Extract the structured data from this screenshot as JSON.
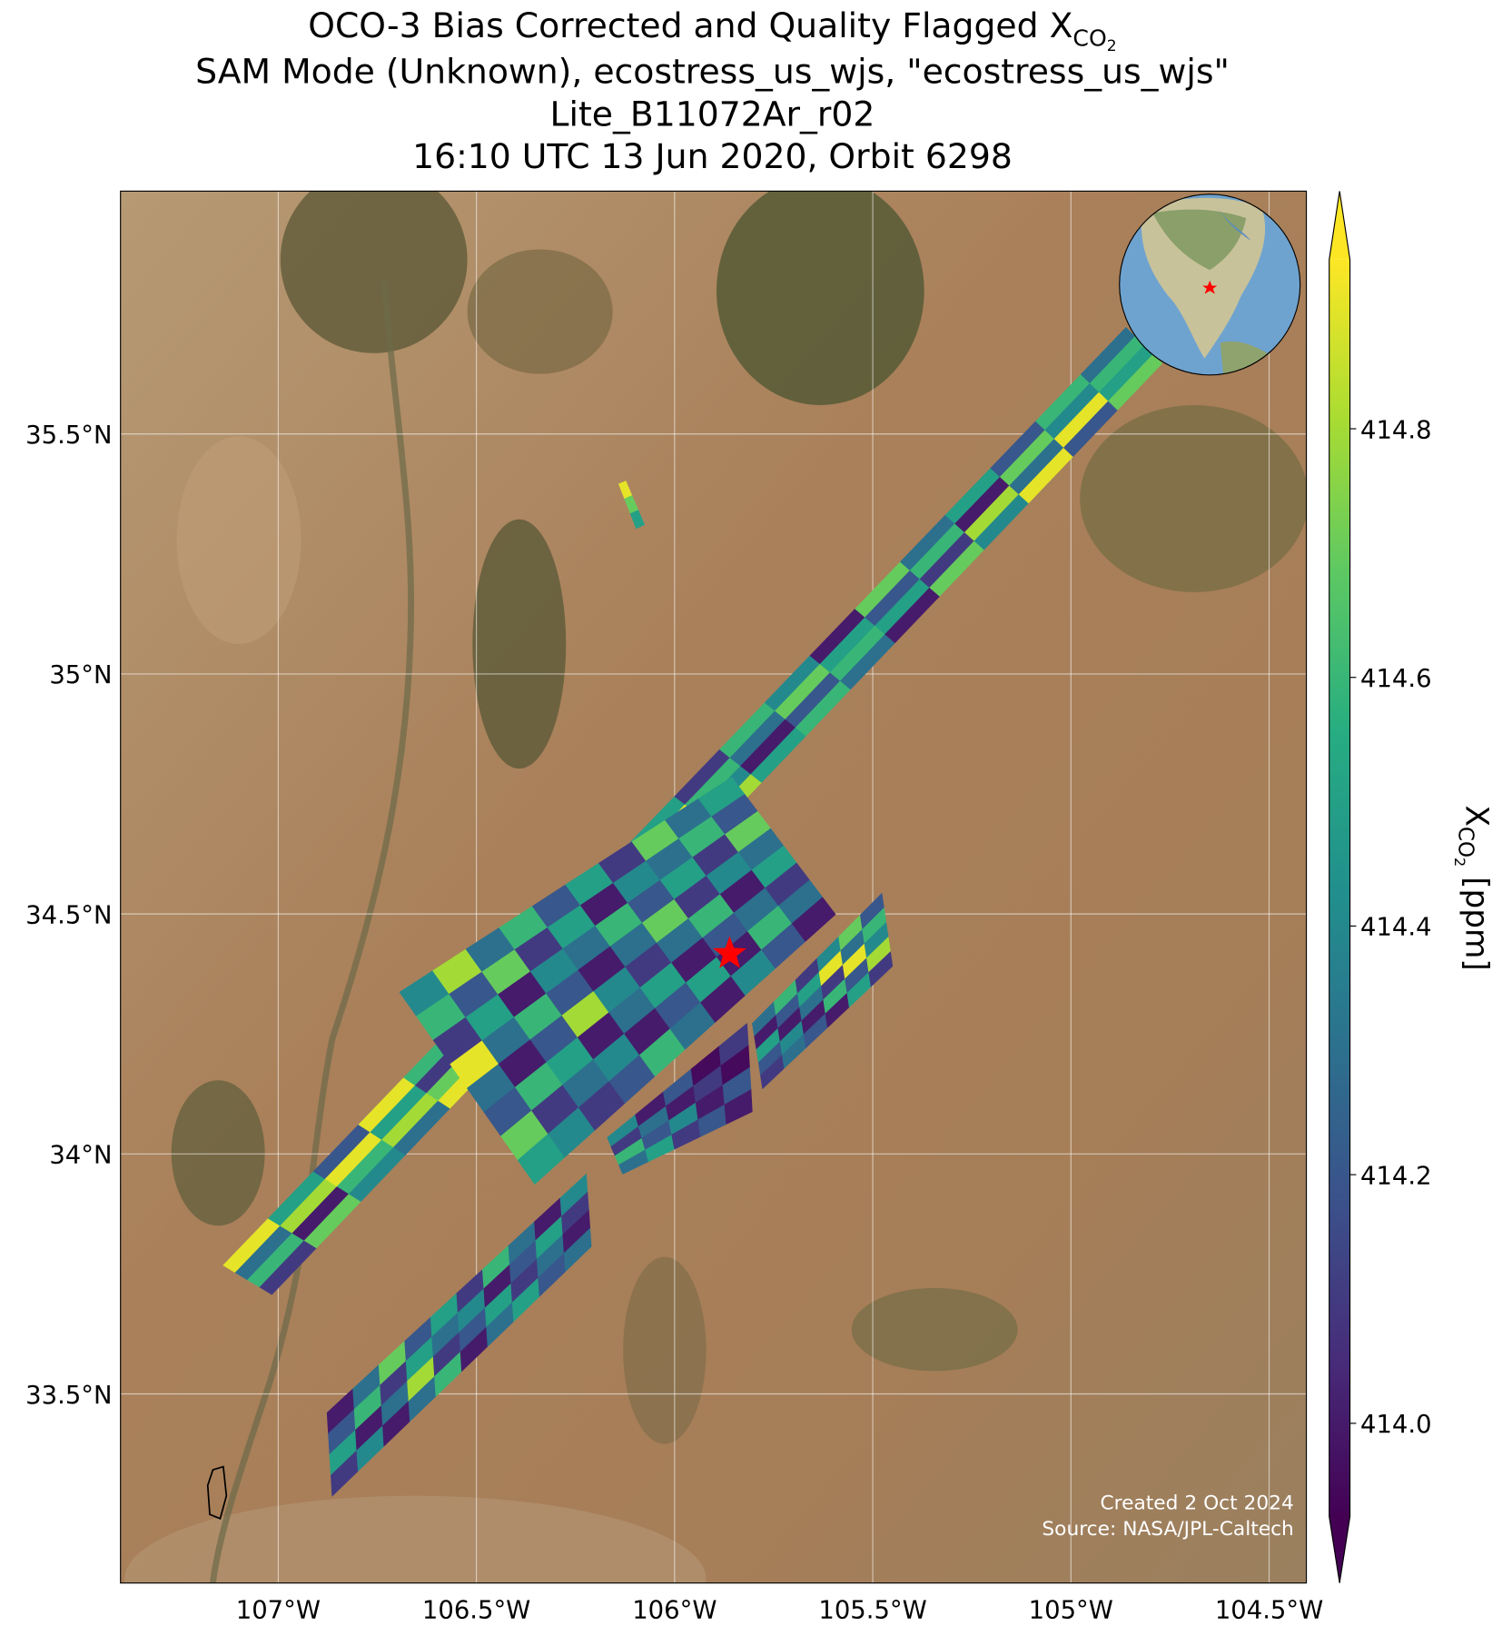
{
  "chart_data": {
    "type": "map",
    "title": {
      "text": "OCO-3 Bias Corrected and Quality Flagged X",
      "sub": "CO",
      "subsub": "2"
    },
    "subtitle_lines": [
      "SAM Mode (Unknown), ecostress_us_wjs, \"ecostress_us_wjs\"",
      "Lite_B11072Ar_r02",
      "16:10 UTC 13 Jun 2020, Orbit 6298"
    ],
    "xlim": [
      -107.398,
      -104.406
    ],
    "ylim": [
      33.106,
      36.006
    ],
    "xticks": [
      {
        "value": -107,
        "label": "107°W"
      },
      {
        "value": -106.5,
        "label": "106.5°W"
      },
      {
        "value": -106,
        "label": "106°W"
      },
      {
        "value": -105.5,
        "label": "105.5°W"
      },
      {
        "value": -105,
        "label": "105°W"
      },
      {
        "value": -104.5,
        "label": "104.5°W"
      }
    ],
    "yticks": [
      {
        "value": 33.5,
        "label": "33.5°N"
      },
      {
        "value": 34,
        "label": "34°N"
      },
      {
        "value": 34.5,
        "label": "34.5°N"
      },
      {
        "value": 35,
        "label": "35°N"
      },
      {
        "value": 35.5,
        "label": "35.5°N"
      }
    ],
    "grid": true,
    "site": {
      "lon": -105.861,
      "lat": 34.417,
      "color": "#ff0000"
    },
    "colorbar": {
      "colormap": "viridis",
      "clim": [
        413.925,
        414.936
      ],
      "ticks": [
        {
          "value": 414.0,
          "label": "414.0"
        },
        414.2,
        414.4,
        414.6,
        414.8
      ],
      "label": {
        "main": "X",
        "sub": "CO",
        "subsub": "2",
        "unit": " [ppm]"
      }
    },
    "swaths": [
      {
        "corners": [
          [
            -107.139,
            33.768
          ],
          [
            -104.861,
            35.722
          ],
          [
            -104.77,
            35.647
          ],
          [
            -107.016,
            33.707
          ]
        ],
        "values": [
          [
            414.9,
            414.3,
            414.6,
            414.1
          ],
          [
            414.5,
            414.8,
            414.0,
            414.7
          ],
          [
            414.2,
            414.9,
            414.6,
            414.4
          ],
          [
            414.9,
            414.5,
            414.8,
            414.3
          ],
          [
            414.6,
            414.1,
            414.7,
            414.9
          ],
          [
            414.8,
            414.9,
            414.4,
            414.6
          ],
          [
            414.3,
            414.7,
            414.9,
            414.5
          ],
          [
            414.9,
            414.6,
            414.2,
            414.8
          ],
          [
            414.7,
            414.4,
            414.9,
            414.6
          ],
          [
            414.5,
            414.9,
            414.7,
            414.3
          ],
          [
            414.1,
            414.6,
            414.4,
            414.8
          ],
          [
            414.6,
            414.3,
            414.0,
            414.5
          ],
          [
            414.4,
            414.7,
            414.2,
            414.6
          ],
          [
            414.0,
            414.5,
            414.6,
            414.3
          ],
          [
            414.7,
            414.2,
            414.5,
            414.0
          ],
          [
            414.3,
            414.6,
            414.1,
            414.7
          ],
          [
            414.5,
            414.0,
            414.8,
            414.4
          ],
          [
            414.2,
            414.7,
            414.3,
            414.9
          ],
          [
            414.6,
            414.4,
            414.9,
            414.2
          ],
          [
            414.3,
            414.6,
            414.5,
            414.7
          ]
        ]
      },
      {
        "corners": [
          [
            -106.694,
            34.337
          ],
          [
            -105.856,
            34.785
          ],
          [
            -105.594,
            34.499
          ],
          [
            -106.353,
            33.937
          ]
        ],
        "values": [
          [
            414.4,
            414.6,
            414.1,
            414.9,
            414.3,
            414.2,
            414.7,
            414.5
          ],
          [
            414.8,
            414.2,
            414.5,
            414.3,
            414.0,
            414.6,
            414.1,
            414.4
          ],
          [
            414.3,
            414.7,
            414.0,
            414.6,
            414.2,
            414.5,
            414.3,
            414.1
          ],
          [
            414.6,
            414.1,
            414.4,
            414.2,
            414.8,
            414.0,
            414.4,
            414.2
          ],
          [
            414.2,
            414.5,
            414.3,
            414.0,
            414.4,
            414.3,
            414.0,
            414.6
          ],
          [
            414.5,
            414.0,
            414.6,
            414.3,
            414.1,
            414.5,
            414.2,
            414.3
          ],
          [
            414.1,
            414.4,
            414.2,
            414.7,
            414.3,
            414.0,
            414.5,
            414.0
          ],
          [
            414.7,
            414.3,
            414.5,
            414.1,
            414.6,
            414.2,
            414.0,
            414.4
          ],
          [
            414.3,
            414.6,
            414.1,
            414.4,
            414.0,
            414.3,
            414.6,
            414.2
          ],
          [
            414.5,
            414.2,
            414.7,
            414.3,
            414.5,
            414.1,
            414.3,
            414.0
          ]
        ]
      },
      {
        "corners": [
          [
            -105.804,
            34.272
          ],
          [
            -105.477,
            34.543
          ],
          [
            -105.45,
            34.391
          ],
          [
            -105.778,
            34.136
          ]
        ],
        "values": [
          [
            414.3,
            414.0,
            414.5,
            414.2,
            414.1
          ],
          [
            414.6,
            414.2,
            414.0,
            414.4,
            414.3
          ],
          [
            414.1,
            414.5,
            414.3,
            414.0,
            414.2
          ],
          [
            414.4,
            414.9,
            414.1,
            414.6,
            414.0
          ],
          [
            414.7,
            414.3,
            414.9,
            414.2,
            414.5
          ],
          [
            414.2,
            414.6,
            414.4,
            414.8,
            414.1
          ]
        ]
      },
      {
        "corners": [
          [
            -106.17,
            34.034
          ],
          [
            -105.817,
            34.272
          ],
          [
            -105.804,
            34.088
          ],
          [
            -106.131,
            33.958
          ]
        ],
        "values": [
          [
            414.4,
            414.1,
            414.6,
            414.3
          ],
          [
            414.0,
            414.3,
            414.2,
            414.5
          ],
          [
            414.2,
            414.0,
            414.4,
            414.1
          ],
          [
            413.95,
            414.1,
            414.0,
            414.2
          ],
          [
            414.1,
            413.95,
            414.2,
            414.0
          ]
        ]
      },
      {
        "corners": [
          [
            -106.877,
            33.461
          ],
          [
            -106.223,
            33.958
          ],
          [
            -106.21,
            33.807
          ],
          [
            -106.864,
            33.287
          ]
        ],
        "values": [
          [
            414.0,
            414.2,
            414.5,
            414.1
          ],
          [
            414.3,
            414.6,
            414.0,
            414.4
          ],
          [
            414.7,
            414.1,
            414.3,
            414.0
          ],
          [
            414.2,
            414.5,
            414.8,
            414.3
          ],
          [
            414.5,
            414.3,
            414.1,
            414.6
          ],
          [
            414.1,
            414.4,
            414.2,
            414.0
          ],
          [
            414.6,
            414.0,
            414.5,
            414.3
          ],
          [
            414.3,
            414.2,
            414.1,
            414.5
          ],
          [
            414.0,
            414.5,
            414.3,
            414.2
          ],
          [
            414.4,
            414.1,
            414.0,
            414.3
          ]
        ]
      },
      {
        "corners": [
          [
            -106.141,
            35.396
          ],
          [
            -106.097,
            35.303
          ],
          [
            -106.076,
            35.311
          ],
          [
            -106.123,
            35.402
          ]
        ],
        "values": [
          [
            414.9
          ],
          [
            414.7
          ],
          [
            414.5
          ]
        ]
      }
    ],
    "credits": [
      "Created 2 Oct 2024",
      "Source: NASA/JPL-Caltech"
    ]
  }
}
